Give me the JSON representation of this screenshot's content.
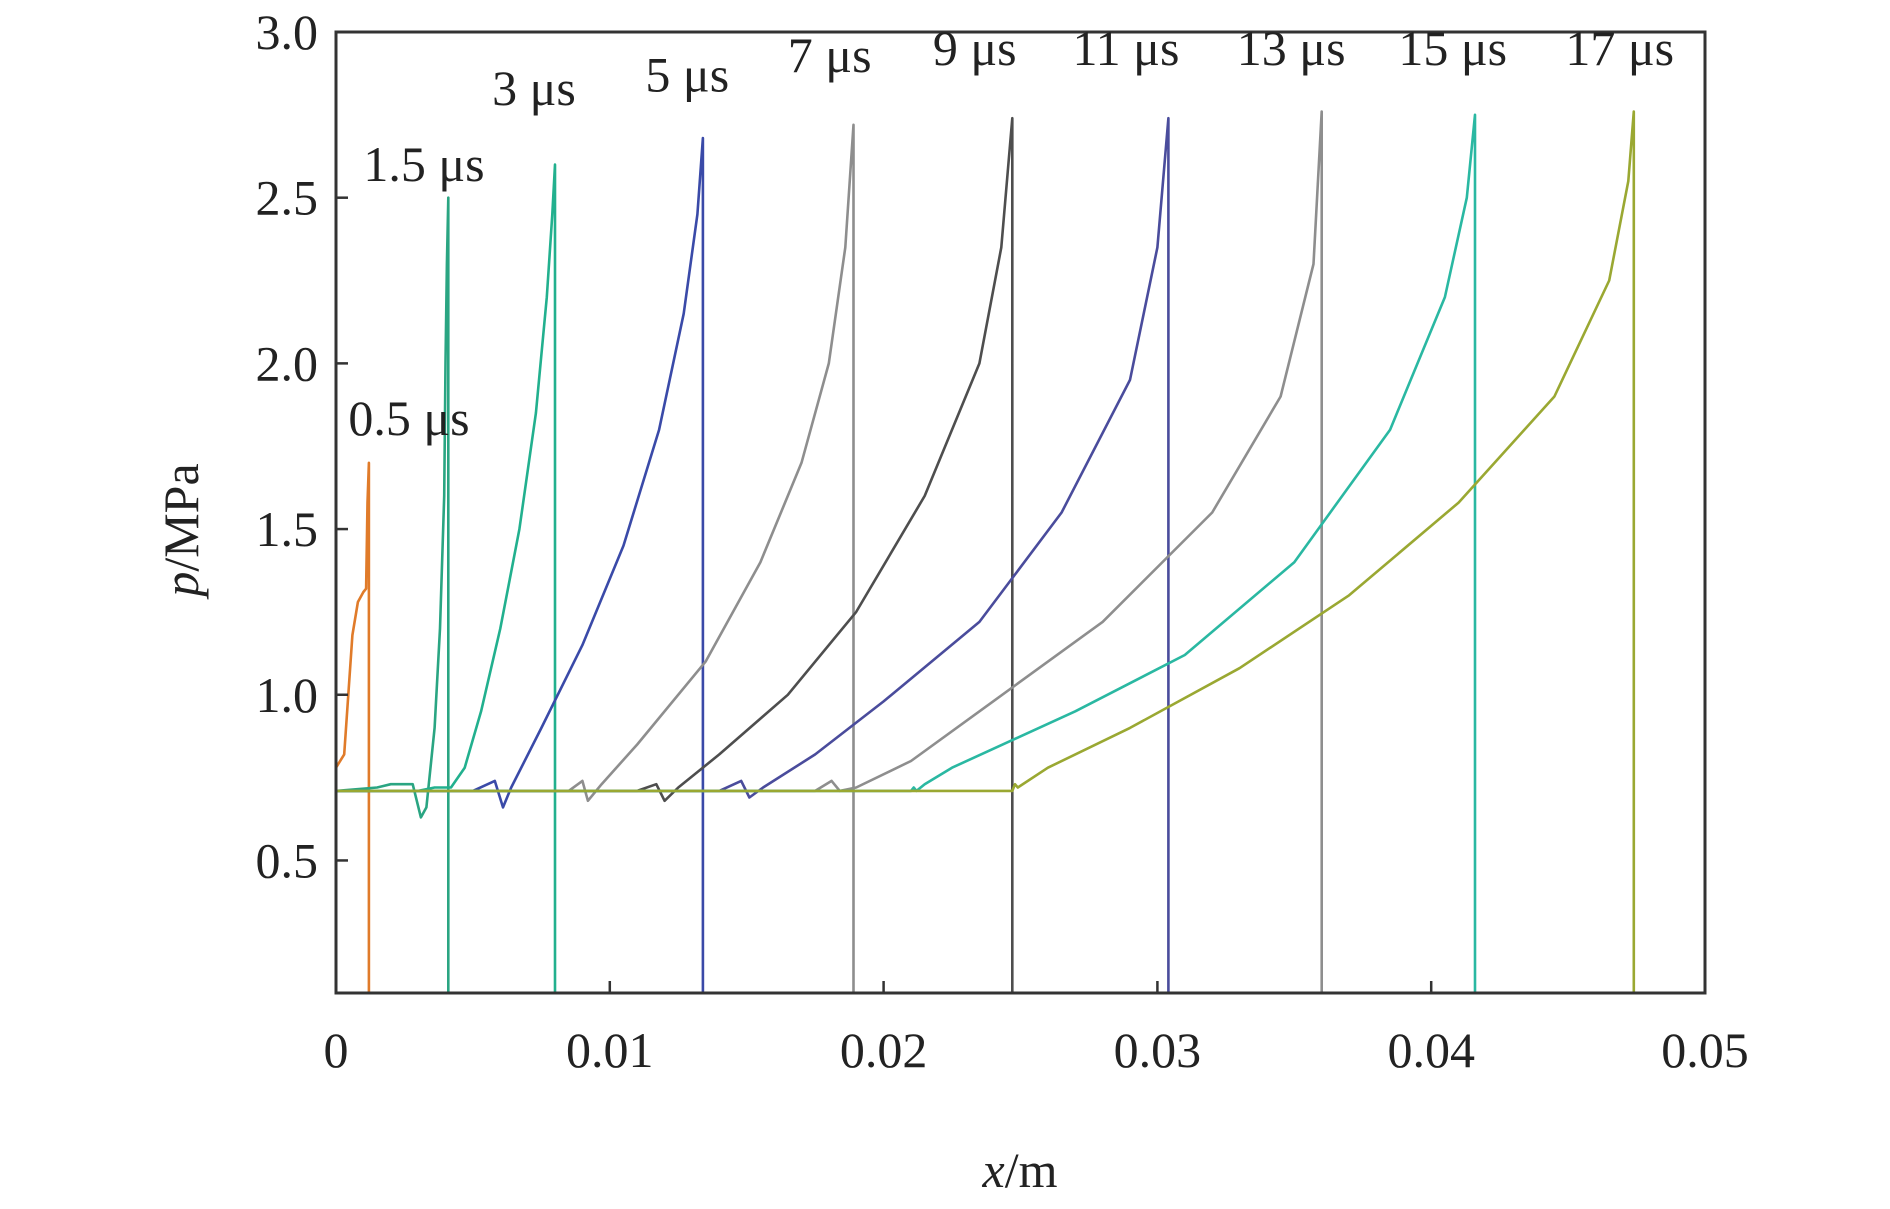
{
  "chart_data": {
    "type": "line",
    "title": "",
    "xlabel": {
      "var": "x",
      "unit": "/m"
    },
    "ylabel": {
      "var": "p",
      "unit": "/MPa"
    },
    "xlim": [
      0,
      0.05
    ],
    "ylim": [
      0.1,
      3.0
    ],
    "x_ticks": [
      {
        "value": 0,
        "label": "0"
      },
      {
        "value": 0.01,
        "label": "0.01"
      },
      {
        "value": 0.02,
        "label": "0.02"
      },
      {
        "value": 0.03,
        "label": "0.03"
      },
      {
        "value": 0.04,
        "label": "0.04"
      },
      {
        "value": 0.05,
        "label": "0.05"
      }
    ],
    "y_ticks": [
      {
        "value": 0.5,
        "label": "0.5"
      },
      {
        "value": 1.0,
        "label": "1.0"
      },
      {
        "value": 1.5,
        "label": "1.5"
      },
      {
        "value": 2.0,
        "label": "2.0"
      },
      {
        "value": 2.5,
        "label": "2.5"
      },
      {
        "value": 3.0,
        "label": "3.0"
      }
    ],
    "grid": false,
    "legend": "inline labels above each peak",
    "series": [
      {
        "name": "0.5 μs",
        "color": "#e07b2a",
        "color2": "#9aa832",
        "points": [
          [
            0,
            0.78
          ],
          [
            0.0003,
            0.82
          ],
          [
            0.0006,
            1.18
          ],
          [
            0.0008,
            1.28
          ],
          [
            0.001,
            1.31
          ],
          [
            0.0011,
            1.32
          ],
          [
            0.00115,
            1.58
          ],
          [
            0.0012,
            1.7
          ],
          [
            0.0012,
            0.1
          ],
          [
            0.05,
            0.1
          ]
        ]
      },
      {
        "name": "1.5 μs",
        "color": "#2aa582",
        "color2": "#4aa6d0",
        "points": [
          [
            0,
            0.71
          ],
          [
            0.0015,
            0.72
          ],
          [
            0.002,
            0.73
          ],
          [
            0.0028,
            0.73
          ],
          [
            0.0031,
            0.63
          ],
          [
            0.0033,
            0.66
          ],
          [
            0.0036,
            0.9
          ],
          [
            0.0038,
            1.2
          ],
          [
            0.00395,
            1.6
          ],
          [
            0.004,
            2.0
          ],
          [
            0.00405,
            2.3
          ],
          [
            0.0041,
            2.5
          ],
          [
            0.0041,
            0.1
          ],
          [
            0.05,
            0.1
          ]
        ]
      },
      {
        "name": "3 μs",
        "color": "#22b08e",
        "color2": "#22b08e",
        "points": [
          [
            0,
            0.71
          ],
          [
            0.003,
            0.71
          ],
          [
            0.0036,
            0.72
          ],
          [
            0.0042,
            0.72
          ],
          [
            0.0047,
            0.78
          ],
          [
            0.0053,
            0.95
          ],
          [
            0.006,
            1.2
          ],
          [
            0.0067,
            1.5
          ],
          [
            0.0073,
            1.85
          ],
          [
            0.0077,
            2.2
          ],
          [
            0.0079,
            2.45
          ],
          [
            0.008,
            2.6
          ],
          [
            0.008,
            0.1
          ],
          [
            0.05,
            0.1
          ]
        ]
      },
      {
        "name": "5 μs",
        "color": "#3a4aa8",
        "color2": "#3a7ac8",
        "points": [
          [
            0,
            0.71
          ],
          [
            0.005,
            0.71
          ],
          [
            0.0058,
            0.74
          ],
          [
            0.0061,
            0.66
          ],
          [
            0.0064,
            0.72
          ],
          [
            0.0075,
            0.9
          ],
          [
            0.009,
            1.15
          ],
          [
            0.0105,
            1.45
          ],
          [
            0.0118,
            1.8
          ],
          [
            0.0127,
            2.15
          ],
          [
            0.0132,
            2.45
          ],
          [
            0.0134,
            2.68
          ],
          [
            0.0134,
            0.1
          ],
          [
            0.05,
            0.1
          ]
        ]
      },
      {
        "name": "7 μs",
        "color": "#8e8e8e",
        "color2": "#6a9ad8",
        "points": [
          [
            0,
            0.71
          ],
          [
            0.0085,
            0.71
          ],
          [
            0.009,
            0.74
          ],
          [
            0.0092,
            0.68
          ],
          [
            0.0097,
            0.73
          ],
          [
            0.011,
            0.85
          ],
          [
            0.0135,
            1.1
          ],
          [
            0.0155,
            1.4
          ],
          [
            0.017,
            1.7
          ],
          [
            0.018,
            2.0
          ],
          [
            0.0186,
            2.35
          ],
          [
            0.0189,
            2.72
          ],
          [
            0.0189,
            0.1
          ],
          [
            0.05,
            0.1
          ]
        ]
      },
      {
        "name": "9 μs",
        "color": "#4e4e4e",
        "color2": "#4e4e4e",
        "points": [
          [
            0,
            0.71
          ],
          [
            0.011,
            0.71
          ],
          [
            0.0117,
            0.73
          ],
          [
            0.012,
            0.68
          ],
          [
            0.0125,
            0.72
          ],
          [
            0.014,
            0.82
          ],
          [
            0.0165,
            1.0
          ],
          [
            0.019,
            1.25
          ],
          [
            0.0215,
            1.6
          ],
          [
            0.0235,
            2.0
          ],
          [
            0.0243,
            2.35
          ],
          [
            0.0247,
            2.74
          ],
          [
            0.0247,
            0.1
          ],
          [
            0.05,
            0.1
          ]
        ]
      },
      {
        "name": "11 μs",
        "color": "#4a4c9c",
        "color2": "#3a82c8",
        "points": [
          [
            0,
            0.71
          ],
          [
            0.014,
            0.71
          ],
          [
            0.0148,
            0.74
          ],
          [
            0.0151,
            0.69
          ],
          [
            0.0156,
            0.72
          ],
          [
            0.0175,
            0.82
          ],
          [
            0.02,
            0.98
          ],
          [
            0.0235,
            1.22
          ],
          [
            0.0265,
            1.55
          ],
          [
            0.029,
            1.95
          ],
          [
            0.03,
            2.35
          ],
          [
            0.0304,
            2.74
          ],
          [
            0.0304,
            0.1
          ],
          [
            0.05,
            0.1
          ]
        ]
      },
      {
        "name": "13 μs",
        "color": "#8e8e8e",
        "color2": "#7a7ab8",
        "points": [
          [
            0,
            0.71
          ],
          [
            0.0175,
            0.71
          ],
          [
            0.0181,
            0.74
          ],
          [
            0.0184,
            0.71
          ],
          [
            0.019,
            0.72
          ],
          [
            0.021,
            0.8
          ],
          [
            0.024,
            0.98
          ],
          [
            0.028,
            1.22
          ],
          [
            0.032,
            1.55
          ],
          [
            0.0345,
            1.9
          ],
          [
            0.0357,
            2.3
          ],
          [
            0.036,
            2.76
          ],
          [
            0.036,
            0.1
          ],
          [
            0.05,
            0.1
          ]
        ]
      },
      {
        "name": "15 μs",
        "color": "#2ab8a2",
        "color2": "#2ab8a2",
        "points": [
          [
            0,
            0.71
          ],
          [
            0.021,
            0.71
          ],
          [
            0.0211,
            0.72
          ],
          [
            0.0212,
            0.71
          ],
          [
            0.0215,
            0.73
          ],
          [
            0.0225,
            0.78
          ],
          [
            0.027,
            0.95
          ],
          [
            0.031,
            1.12
          ],
          [
            0.035,
            1.4
          ],
          [
            0.0385,
            1.8
          ],
          [
            0.0405,
            2.2
          ],
          [
            0.0413,
            2.5
          ],
          [
            0.0416,
            2.75
          ],
          [
            0.0416,
            0.1
          ],
          [
            0.05,
            0.1
          ]
        ]
      },
      {
        "name": "17 μs",
        "color": "#9aa832",
        "color2": "#8e8e8e",
        "points": [
          [
            0,
            0.71
          ],
          [
            0.0247,
            0.71
          ],
          [
            0.0248,
            0.73
          ],
          [
            0.0249,
            0.72
          ],
          [
            0.026,
            0.78
          ],
          [
            0.029,
            0.9
          ],
          [
            0.033,
            1.08
          ],
          [
            0.037,
            1.3
          ],
          [
            0.041,
            1.58
          ],
          [
            0.0445,
            1.9
          ],
          [
            0.0465,
            2.25
          ],
          [
            0.0472,
            2.55
          ],
          [
            0.0474,
            2.76
          ],
          [
            0.0474,
            0.1
          ],
          [
            0.05,
            0.1
          ]
        ]
      }
    ]
  }
}
